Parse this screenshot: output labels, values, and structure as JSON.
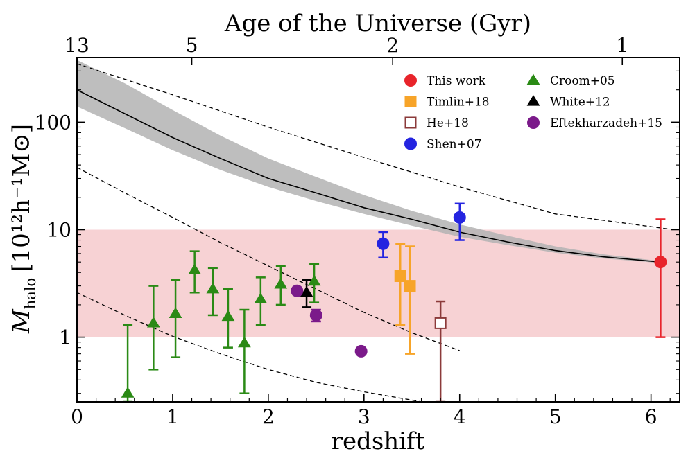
{
  "chart_data": {
    "type": "scatter",
    "xlabel": "redshift",
    "ylabel_main": "M",
    "ylabel_sub": "halo",
    "ylabel_units": "[10¹²h⁻¹M⊙]",
    "top_axis_label": "Age of the Universe (Gyr)",
    "x_range": [
      0,
      6.3
    ],
    "y_range": [
      0.25,
      400
    ],
    "y_scale": "log",
    "x_ticks": [
      0,
      1,
      2,
      3,
      4,
      5,
      6
    ],
    "x_tick_labels": [
      "0",
      "1",
      "2",
      "3",
      "4",
      "5",
      "6"
    ],
    "y_ticks": [
      1,
      10,
      100
    ],
    "y_tick_labels": [
      "1",
      "10",
      "100"
    ],
    "top_ticks": [
      {
        "redshift": 0.0,
        "label": "13"
      },
      {
        "redshift": 1.2,
        "label": "5"
      },
      {
        "redshift": 3.3,
        "label": "2"
      },
      {
        "redshift": 5.7,
        "label": "1"
      }
    ],
    "band": {
      "y_low": 1,
      "y_high": 10,
      "color": "#f7d2d4"
    },
    "main_track": {
      "x": [
        0,
        0.5,
        1,
        1.5,
        2,
        2.5,
        3,
        3.5,
        4,
        4.5,
        5,
        5.5,
        6.1
      ],
      "y": [
        200,
        120,
        72,
        46,
        30,
        22,
        16,
        12.5,
        9.5,
        7.7,
        6.4,
        5.6,
        5.0
      ],
      "y_low": [
        140,
        88,
        55,
        36,
        25,
        18.5,
        14,
        10.9,
        8.6,
        7.2,
        6.1,
        5.4,
        4.9
      ],
      "y_high": [
        380,
        230,
        130,
        75,
        46,
        31,
        21,
        15,
        11.2,
        8.8,
        7.0,
        5.9,
        5.1
      ]
    },
    "dashed_tracks": [
      {
        "x": [
          0,
          1,
          2,
          3,
          4,
          5,
          6.2
        ],
        "y": [
          350,
          180,
          90,
          47,
          25,
          14,
          10.1
        ]
      },
      {
        "x": [
          0,
          0.5,
          1,
          1.5,
          2,
          2.5,
          3,
          3.5,
          4
        ],
        "y": [
          38,
          22,
          13,
          7.6,
          4.6,
          2.8,
          1.7,
          1.1,
          0.75
        ]
      },
      {
        "x": [
          0,
          0.5,
          1,
          1.5,
          2,
          2.5,
          3,
          3.5,
          3.6
        ],
        "y": [
          2.6,
          1.6,
          1.02,
          0.7,
          0.5,
          0.38,
          0.31,
          0.26,
          0.25
        ]
      }
    ],
    "series": [
      {
        "name": "This work",
        "marker": "circle",
        "color": "#e8242b",
        "filled": true,
        "points": [
          {
            "x": 6.1,
            "y": 5.0,
            "ylo": 1.0,
            "yhi": 12.5
          }
        ]
      },
      {
        "name": "Timlin+18",
        "marker": "square",
        "color": "#f7a429",
        "filled": true,
        "points": [
          {
            "x": 3.38,
            "y": 3.7,
            "ylo": 1.3,
            "yhi": 7.4
          },
          {
            "x": 3.48,
            "y": 3.0,
            "ylo": 0.7,
            "yhi": 7.0
          }
        ]
      },
      {
        "name": "He+18",
        "marker": "square",
        "color": "#8b3a3a",
        "filled": false,
        "points": [
          {
            "x": 3.8,
            "y": 1.35,
            "ylo": 0.25,
            "yhi": 2.15
          }
        ]
      },
      {
        "name": "Shen+07",
        "marker": "circle",
        "color": "#2424e0",
        "filled": true,
        "points": [
          {
            "x": 3.2,
            "y": 7.4,
            "ylo": 5.5,
            "yhi": 9.5
          },
          {
            "x": 4.0,
            "y": 13.0,
            "ylo": 8.0,
            "yhi": 17.5
          }
        ]
      },
      {
        "name": "Croom+05",
        "marker": "triangle",
        "color": "#2a8a15",
        "filled": true,
        "points": [
          {
            "x": 0.53,
            "y": 0.3,
            "ylo": 0.25,
            "yhi": 1.3
          },
          {
            "x": 0.8,
            "y": 1.35,
            "ylo": 0.5,
            "yhi": 3.0
          },
          {
            "x": 1.03,
            "y": 1.65,
            "ylo": 0.65,
            "yhi": 3.4
          },
          {
            "x": 1.23,
            "y": 4.2,
            "ylo": 2.6,
            "yhi": 6.3
          },
          {
            "x": 1.42,
            "y": 2.8,
            "ylo": 1.6,
            "yhi": 4.4
          },
          {
            "x": 1.58,
            "y": 1.55,
            "ylo": 0.8,
            "yhi": 2.8
          },
          {
            "x": 1.75,
            "y": 0.88,
            "ylo": 0.3,
            "yhi": 1.8
          },
          {
            "x": 1.92,
            "y": 2.25,
            "ylo": 1.3,
            "yhi": 3.6
          },
          {
            "x": 2.13,
            "y": 3.1,
            "ylo": 2.0,
            "yhi": 4.6
          },
          {
            "x": 2.48,
            "y": 3.3,
            "ylo": 2.1,
            "yhi": 4.8
          }
        ]
      },
      {
        "name": "White+12",
        "marker": "triangle",
        "color": "#000000",
        "filled": true,
        "points": [
          {
            "x": 2.4,
            "y": 2.6,
            "ylo": 1.9,
            "yhi": 3.4
          }
        ]
      },
      {
        "name": "Eftekharzadeh+15",
        "marker": "circle",
        "color": "#7b1a8a",
        "filled": true,
        "points": [
          {
            "x": 2.3,
            "y": 2.7,
            "ylo": 2.5,
            "yhi": 2.9
          },
          {
            "x": 2.5,
            "y": 1.6,
            "ylo": 1.4,
            "yhi": 1.8
          },
          {
            "x": 2.97,
            "y": 0.74,
            "ylo": 0.7,
            "yhi": 0.78
          }
        ]
      }
    ],
    "legend": {
      "position": "top-right",
      "columns": 2
    }
  }
}
